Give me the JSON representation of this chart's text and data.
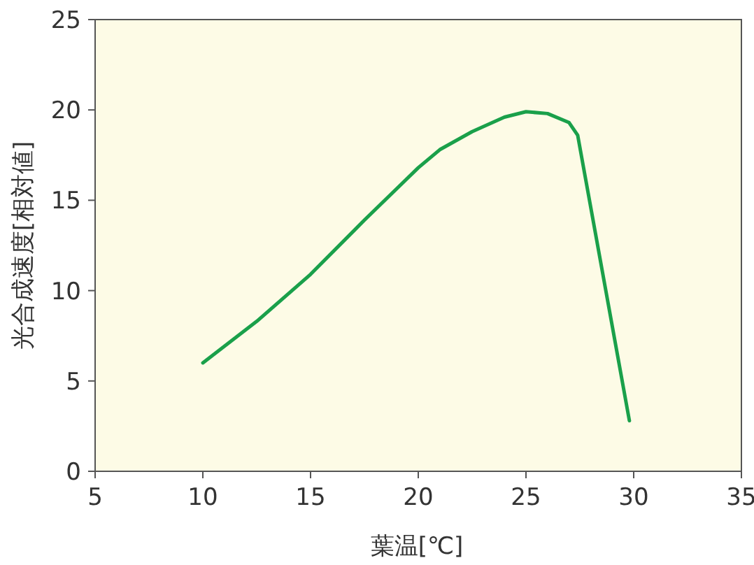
{
  "chart_data": {
    "type": "line",
    "xlabel": "葉温[℃]",
    "ylabel": "光合成速度[相対値]",
    "x": [
      10,
      12.5,
      15,
      17.5,
      20,
      21,
      22.5,
      24,
      25,
      26,
      27,
      27.4,
      29.8
    ],
    "series": [
      {
        "color": "#1aa04a",
        "values": [
          6,
          8.3,
          10.9,
          13.9,
          16.8,
          17.8,
          18.8,
          19.6,
          19.9,
          19.8,
          19.3,
          18.6,
          2.8
        ]
      }
    ],
    "xlim": [
      5,
      35
    ],
    "ylim": [
      0,
      25
    ],
    "xticks": [
      5,
      10,
      15,
      20,
      25,
      30,
      35
    ],
    "yticks": [
      0,
      5,
      10,
      15,
      20,
      25
    ],
    "grid": false,
    "marker": "none",
    "line_style": "solid"
  }
}
